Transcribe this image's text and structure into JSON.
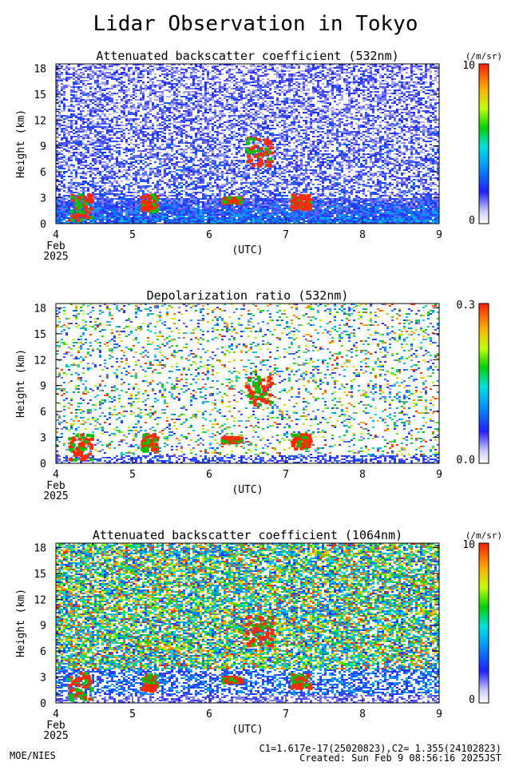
{
  "page": {
    "title": "Lidar Observation in Tokyo",
    "footer_left": "MOE/NIES",
    "footer_calib": "C1=1.617e-17(25020823),C2= 1.355(24102823)",
    "footer_created": "Created: Sun Feb  9 08:56:16 2025JST"
  },
  "chart_data": [
    {
      "type": "heatmap",
      "title": "Attenuated backscatter coefficient (532nm)",
      "ylabel": "Height (km)",
      "xlabel": "(UTC)",
      "x_ticks": [
        "4",
        "5",
        "6",
        "7",
        "8",
        "9"
      ],
      "x_sub": [
        "Feb",
        "2025"
      ],
      "y_ticks": [
        "0",
        "3",
        "6",
        "9",
        "12",
        "15",
        "18"
      ],
      "xlim": [
        4,
        9
      ],
      "ylim": [
        0,
        18.5
      ],
      "colorbar": {
        "min_label": "0",
        "max_label": "10",
        "unit": "(/m/sr)",
        "type": "log"
      },
      "features": [
        {
          "kind": "cloud",
          "t": [
            4.15,
            4.45
          ],
          "h": [
            0.5,
            3.6
          ]
        },
        {
          "kind": "cloud",
          "t": [
            5.1,
            5.3
          ],
          "h": [
            1.5,
            3.5
          ]
        },
        {
          "kind": "cloud",
          "t": [
            6.15,
            6.4
          ],
          "h": [
            2.5,
            3.2
          ]
        },
        {
          "kind": "cloud",
          "t": [
            7.05,
            7.3
          ],
          "h": [
            1.8,
            3.5
          ]
        },
        {
          "kind": "cloud",
          "t": [
            6.45,
            6.8
          ],
          "h": [
            6.8,
            10.2
          ]
        }
      ]
    },
    {
      "type": "heatmap",
      "title": "Depolarization ratio (532nm)",
      "ylabel": "Height (km)",
      "xlabel": "(UTC)",
      "x_ticks": [
        "4",
        "5",
        "6",
        "7",
        "8",
        "9"
      ],
      "x_sub": [
        "Feb",
        "2025"
      ],
      "y_ticks": [
        "0",
        "3",
        "6",
        "9",
        "12",
        "15",
        "18"
      ],
      "xlim": [
        4,
        9
      ],
      "ylim": [
        0,
        18.5
      ],
      "colorbar": {
        "min_label": "0.0",
        "max_label": "0.3",
        "unit": "",
        "type": "linear"
      }
    },
    {
      "type": "heatmap",
      "title": "Attenuated backscatter coefficient (1064nm)",
      "ylabel": "Height (km)",
      "xlabel": "(UTC)",
      "x_ticks": [
        "4",
        "5",
        "6",
        "7",
        "8",
        "9"
      ],
      "x_sub": [
        "Feb",
        "2025"
      ],
      "y_ticks": [
        "0",
        "3",
        "6",
        "9",
        "12",
        "15",
        "18"
      ],
      "xlim": [
        4,
        9
      ],
      "ylim": [
        0,
        18.5
      ],
      "colorbar": {
        "min_label": "0",
        "max_label": "10",
        "unit": "(/m/sr)",
        "type": "log"
      }
    }
  ]
}
